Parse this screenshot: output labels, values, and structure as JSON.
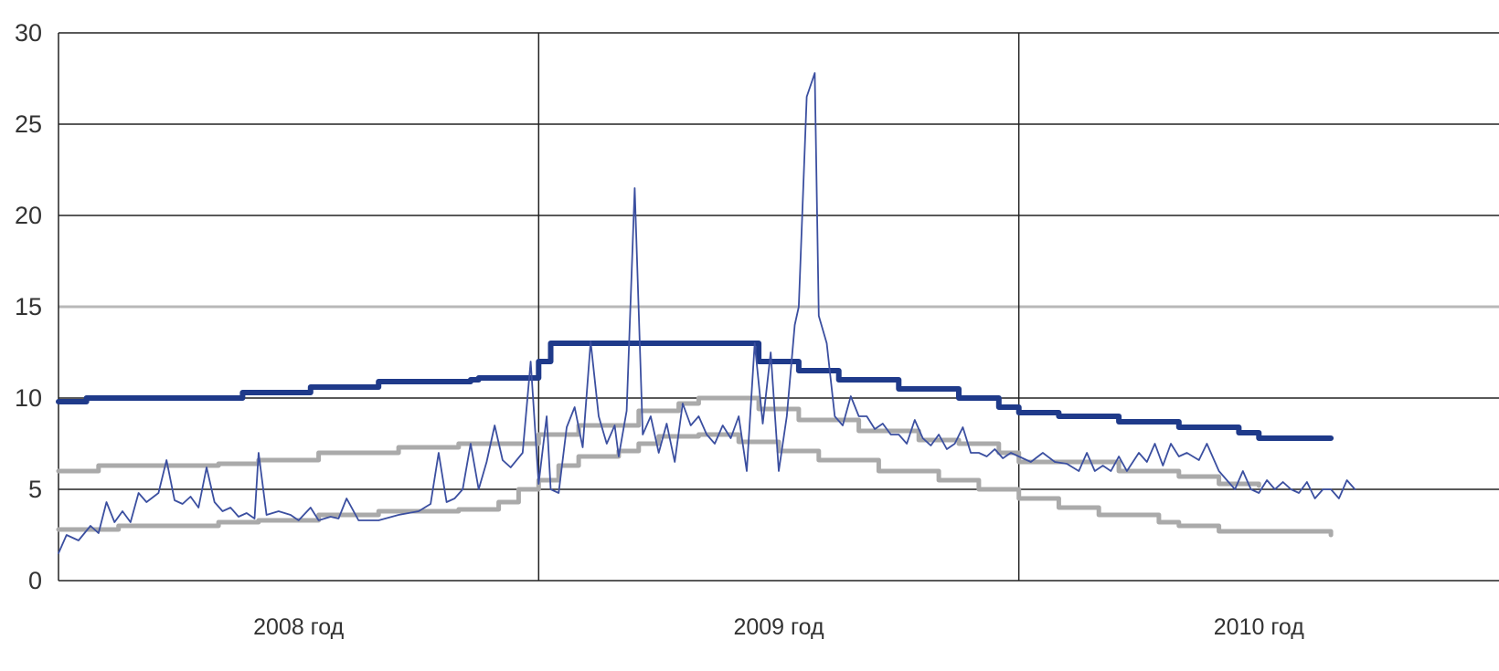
{
  "chart_data": {
    "type": "line",
    "title": "",
    "xlabel": "",
    "ylabel": "",
    "ylim": [
      0,
      30
    ],
    "yticks": [
      "0",
      "5",
      "10",
      "15",
      "20",
      "25",
      "30"
    ],
    "x_categories": [
      "2008 год",
      "2009 год",
      "2010 год"
    ],
    "x_unit": "month",
    "x_range_months": [
      0,
      36
    ],
    "grid": true,
    "legend": "none",
    "series": [
      {
        "color": "#1f3a8a",
        "style": "thick-step",
        "points": [
          [
            0,
            9.8
          ],
          [
            0.7,
            10
          ],
          [
            4.6,
            10.3
          ],
          [
            6.3,
            10.6
          ],
          [
            8.0,
            10.9
          ],
          [
            10.3,
            11.0
          ],
          [
            10.5,
            11.1
          ],
          [
            12.0,
            12.0
          ],
          [
            12.3,
            13.0
          ],
          [
            15.0,
            13.0
          ],
          [
            15.3,
            13.0
          ],
          [
            16.0,
            13.0
          ],
          [
            17.5,
            12.0
          ],
          [
            18.5,
            11.5
          ],
          [
            19.5,
            11.0
          ],
          [
            21.0,
            10.5
          ],
          [
            22.5,
            10.0
          ],
          [
            23.5,
            9.5
          ],
          [
            24.0,
            9.2
          ],
          [
            25.0,
            9.0
          ],
          [
            26.5,
            8.7
          ],
          [
            28.0,
            8.4
          ],
          [
            29.5,
            8.1
          ],
          [
            30.0,
            7.8
          ],
          [
            31.8,
            7.8
          ]
        ]
      },
      {
        "color": "#aaaaaa",
        "style": "step",
        "points": [
          [
            0,
            6.0
          ],
          [
            1.0,
            6.3
          ],
          [
            4.0,
            6.4
          ],
          [
            5.0,
            6.6
          ],
          [
            6.5,
            7.0
          ],
          [
            8.5,
            7.3
          ],
          [
            10.0,
            7.5
          ],
          [
            12.0,
            8.0
          ],
          [
            13.0,
            8.5
          ],
          [
            14.5,
            9.3
          ],
          [
            15.5,
            9.7
          ],
          [
            16.0,
            10.0
          ],
          [
            17.5,
            9.4
          ],
          [
            18.5,
            8.8
          ],
          [
            20.0,
            8.2
          ],
          [
            21.5,
            7.7
          ],
          [
            22.5,
            7.5
          ],
          [
            23.5,
            7.0
          ],
          [
            24.0,
            6.5
          ],
          [
            26.5,
            6.0
          ],
          [
            28.0,
            5.7
          ],
          [
            29.0,
            5.3
          ],
          [
            30.0,
            5.2
          ]
        ]
      },
      {
        "color": "#aaaaaa",
        "style": "step",
        "points": [
          [
            0,
            2.8
          ],
          [
            1.5,
            3.0
          ],
          [
            4.0,
            3.2
          ],
          [
            5.0,
            3.3
          ],
          [
            6.5,
            3.6
          ],
          [
            8.0,
            3.8
          ],
          [
            10.0,
            3.9
          ],
          [
            11.0,
            4.3
          ],
          [
            11.5,
            5.0
          ],
          [
            12.0,
            5.5
          ],
          [
            12.5,
            6.3
          ],
          [
            13.0,
            6.8
          ],
          [
            14.0,
            7.1
          ],
          [
            14.5,
            7.5
          ],
          [
            15.0,
            7.9
          ],
          [
            16.0,
            8.0
          ],
          [
            17.0,
            7.6
          ],
          [
            18.0,
            7.1
          ],
          [
            19.0,
            6.6
          ],
          [
            20.5,
            6.0
          ],
          [
            22.0,
            5.5
          ],
          [
            23.0,
            5.0
          ],
          [
            24.0,
            4.5
          ],
          [
            25.0,
            4.0
          ],
          [
            26.0,
            3.6
          ],
          [
            27.5,
            3.2
          ],
          [
            28.0,
            3.0
          ],
          [
            29.0,
            2.7
          ],
          [
            31.8,
            2.5
          ]
        ]
      },
      {
        "color": "#3b4fa0",
        "style": "thin",
        "points": [
          [
            0,
            1.5
          ],
          [
            0.2,
            2.5
          ],
          [
            0.5,
            2.2
          ],
          [
            0.8,
            3.0
          ],
          [
            1.0,
            2.6
          ],
          [
            1.2,
            4.3
          ],
          [
            1.4,
            3.2
          ],
          [
            1.6,
            3.8
          ],
          [
            1.8,
            3.2
          ],
          [
            2.0,
            4.8
          ],
          [
            2.2,
            4.3
          ],
          [
            2.5,
            4.8
          ],
          [
            2.7,
            6.6
          ],
          [
            2.9,
            4.4
          ],
          [
            3.1,
            4.2
          ],
          [
            3.3,
            4.6
          ],
          [
            3.5,
            4.0
          ],
          [
            3.7,
            6.2
          ],
          [
            3.9,
            4.3
          ],
          [
            4.1,
            3.8
          ],
          [
            4.3,
            4.0
          ],
          [
            4.5,
            3.5
          ],
          [
            4.7,
            3.7
          ],
          [
            4.9,
            3.4
          ],
          [
            5.0,
            7.0
          ],
          [
            5.2,
            3.6
          ],
          [
            5.5,
            3.8
          ],
          [
            5.8,
            3.6
          ],
          [
            6.0,
            3.3
          ],
          [
            6.3,
            4.0
          ],
          [
            6.5,
            3.3
          ],
          [
            6.8,
            3.5
          ],
          [
            7.0,
            3.4
          ],
          [
            7.2,
            4.5
          ],
          [
            7.5,
            3.3
          ],
          [
            8.0,
            3.3
          ],
          [
            8.5,
            3.6
          ],
          [
            9.0,
            3.8
          ],
          [
            9.3,
            4.2
          ],
          [
            9.5,
            7.0
          ],
          [
            9.7,
            4.3
          ],
          [
            9.9,
            4.5
          ],
          [
            10.1,
            5.0
          ],
          [
            10.3,
            7.5
          ],
          [
            10.5,
            5.0
          ],
          [
            10.7,
            6.5
          ],
          [
            10.9,
            8.5
          ],
          [
            11.1,
            6.6
          ],
          [
            11.3,
            6.2
          ],
          [
            11.6,
            7.0
          ],
          [
            11.8,
            12.0
          ],
          [
            12.0,
            5.3
          ],
          [
            12.2,
            9.0
          ],
          [
            12.3,
            5.0
          ],
          [
            12.5,
            4.8
          ],
          [
            12.7,
            8.4
          ],
          [
            12.9,
            9.5
          ],
          [
            13.1,
            7.3
          ],
          [
            13.3,
            13.1
          ],
          [
            13.5,
            9.0
          ],
          [
            13.7,
            7.5
          ],
          [
            13.9,
            8.5
          ],
          [
            14.0,
            6.8
          ],
          [
            14.2,
            9.3
          ],
          [
            14.4,
            21.5
          ],
          [
            14.6,
            8.0
          ],
          [
            14.8,
            9.0
          ],
          [
            15.0,
            7.0
          ],
          [
            15.2,
            8.6
          ],
          [
            15.4,
            6.5
          ],
          [
            15.6,
            9.7
          ],
          [
            15.8,
            8.5
          ],
          [
            16.0,
            9.0
          ],
          [
            16.2,
            8.0
          ],
          [
            16.4,
            7.5
          ],
          [
            16.6,
            8.5
          ],
          [
            16.8,
            7.8
          ],
          [
            17.0,
            9.0
          ],
          [
            17.2,
            6.0
          ],
          [
            17.4,
            13.0
          ],
          [
            17.6,
            8.6
          ],
          [
            17.8,
            12.5
          ],
          [
            18.0,
            6.0
          ],
          [
            18.2,
            9.0
          ],
          [
            18.4,
            14.0
          ],
          [
            18.5,
            15.0
          ],
          [
            18.7,
            26.5
          ],
          [
            18.9,
            27.8
          ],
          [
            19.0,
            14.5
          ],
          [
            19.2,
            13.0
          ],
          [
            19.4,
            9.0
          ],
          [
            19.6,
            8.5
          ],
          [
            19.8,
            10.1
          ],
          [
            20.0,
            9.0
          ],
          [
            20.2,
            9.0
          ],
          [
            20.4,
            8.3
          ],
          [
            20.6,
            8.6
          ],
          [
            20.8,
            8.0
          ],
          [
            21.0,
            8.0
          ],
          [
            21.2,
            7.5
          ],
          [
            21.4,
            8.8
          ],
          [
            21.6,
            7.8
          ],
          [
            21.8,
            7.4
          ],
          [
            22.0,
            8.0
          ],
          [
            22.2,
            7.2
          ],
          [
            22.4,
            7.5
          ],
          [
            22.6,
            8.4
          ],
          [
            22.8,
            7.0
          ],
          [
            23.0,
            7.0
          ],
          [
            23.2,
            6.8
          ],
          [
            23.4,
            7.2
          ],
          [
            23.6,
            6.7
          ],
          [
            23.8,
            7.0
          ],
          [
            24.0,
            6.8
          ],
          [
            24.3,
            6.5
          ],
          [
            24.6,
            7.0
          ],
          [
            24.9,
            6.5
          ],
          [
            25.2,
            6.4
          ],
          [
            25.5,
            6.0
          ],
          [
            25.7,
            7.0
          ],
          [
            25.9,
            6.0
          ],
          [
            26.1,
            6.3
          ],
          [
            26.3,
            6.0
          ],
          [
            26.5,
            6.8
          ],
          [
            26.7,
            6.0
          ],
          [
            27.0,
            7.0
          ],
          [
            27.2,
            6.5
          ],
          [
            27.4,
            7.5
          ],
          [
            27.6,
            6.3
          ],
          [
            27.8,
            7.5
          ],
          [
            28.0,
            6.8
          ],
          [
            28.2,
            7.0
          ],
          [
            28.5,
            6.6
          ],
          [
            28.7,
            7.5
          ],
          [
            29.0,
            6.0
          ],
          [
            29.2,
            5.5
          ],
          [
            29.4,
            5.0
          ],
          [
            29.6,
            6.0
          ],
          [
            29.8,
            5.0
          ],
          [
            30.0,
            4.8
          ],
          [
            30.2,
            5.5
          ],
          [
            30.4,
            5.0
          ],
          [
            30.6,
            5.4
          ],
          [
            30.8,
            5.0
          ],
          [
            31.0,
            4.8
          ],
          [
            31.2,
            5.4
          ],
          [
            31.4,
            4.5
          ],
          [
            31.6,
            5.0
          ],
          [
            31.8,
            5.0
          ],
          [
            32.0,
            4.5
          ],
          [
            32.2,
            5.5
          ],
          [
            32.4,
            5.0
          ]
        ]
      }
    ]
  }
}
